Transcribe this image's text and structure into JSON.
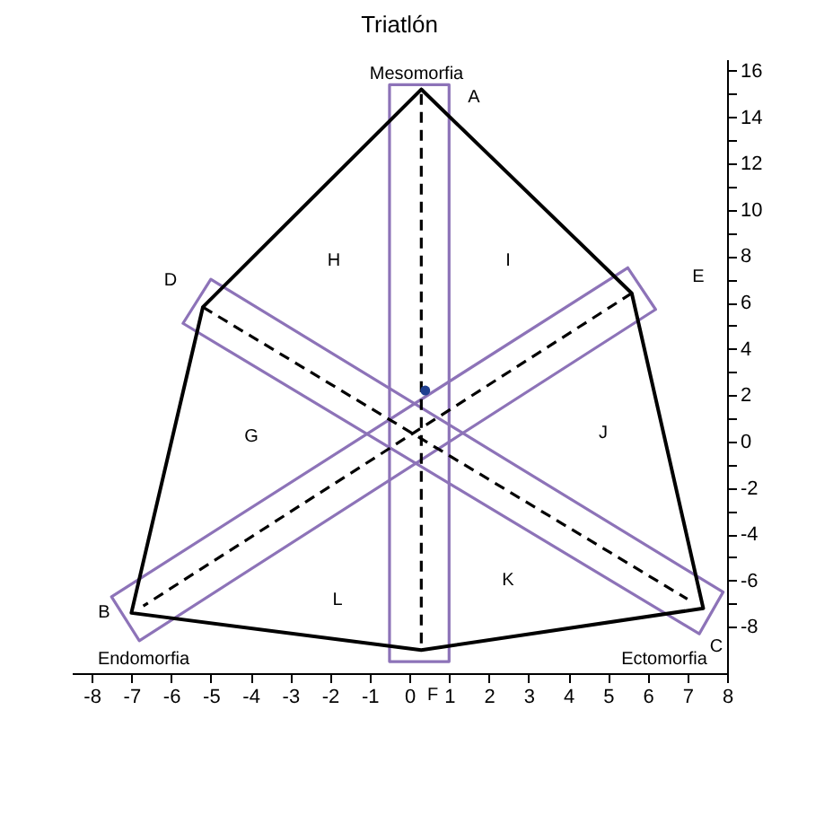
{
  "chart_data": {
    "type": "line",
    "title": "Triatlón",
    "xlim": [
      -8.5,
      8
    ],
    "ylim": [
      -10,
      16.5
    ],
    "xticks": [
      -8,
      -7,
      -6,
      -5,
      -4,
      -3,
      -2,
      -1,
      0,
      1,
      2,
      3,
      4,
      5,
      6,
      7,
      8
    ],
    "yticks": [
      -8,
      {
        "value": -7,
        "label": null
      },
      -6,
      {
        "value": -5,
        "label": null
      },
      -4,
      {
        "value": -3,
        "label": null
      },
      -2,
      {
        "value": -1,
        "label": null
      },
      0,
      {
        "value": 1,
        "label": null
      },
      2,
      {
        "value": 3,
        "label": null
      },
      4,
      {
        "value": 5,
        "label": null
      },
      6,
      {
        "value": 7,
        "label": null
      },
      8,
      {
        "value": 9,
        "label": null
      },
      10,
      {
        "value": 11,
        "label": null
      },
      12,
      {
        "value": 13,
        "label": null
      },
      14,
      {
        "value": 15,
        "label": null
      },
      16
    ],
    "grid": false,
    "series": [
      {
        "color": "#8d73b8",
        "x": [
          -0.5,
          1.0,
          1.0,
          -0.5,
          -0.5,
          1.0
        ],
        "values": [
          15.4,
          15.4,
          -9.5,
          -9.5,
          15.4,
          15.4
        ]
      },
      {
        "color": "#8d73b8",
        "x": [
          7.9,
          7.3,
          -5.7,
          -5.0,
          7.9,
          7.3
        ],
        "values": [
          -6.5,
          -8.3,
          5.1,
          7.0,
          -6.5,
          -8.3
        ]
      },
      {
        "color": "#8d73b8",
        "x": [
          -7.5,
          -6.8,
          6.2,
          5.5,
          -7.5,
          -6.8
        ],
        "values": [
          -6.7,
          -8.6,
          5.7,
          7.5,
          -6.7,
          -8.6
        ]
      },
      {
        "color": "#000000",
        "line_style": "dashed",
        "x": [
          0.3,
          0.3
        ],
        "values": [
          15.0,
          -9.0
        ]
      },
      {
        "color": "#000000",
        "line_style": "dashed",
        "x": [
          -5.2,
          7.0
        ],
        "values": [
          5.8,
          -6.8
        ]
      },
      {
        "color": "#000000",
        "line_style": "dashed",
        "x": [
          5.6,
          -6.7
        ],
        "values": [
          6.4,
          -7.1
        ]
      },
      {
        "color": "#000000",
        "x": [
          -5.2,
          0.3,
          5.6,
          7.4,
          0.3,
          -7.0,
          -5.2,
          0.3
        ],
        "values": [
          5.8,
          15.2,
          6.4,
          -7.2,
          -9.0,
          -7.4,
          5.8,
          15.2
        ]
      },
      {
        "type": "scatter",
        "color": "#1f3f8f",
        "marker": "circle",
        "x": [
          0.4
        ],
        "values": [
          2.2
        ]
      }
    ],
    "annotations": [
      "Mesomorfia",
      "A",
      "D",
      "H",
      "I",
      "E",
      "G",
      "J",
      "L",
      "K",
      "B",
      "C",
      "Endomorfia",
      "Ectomorfia",
      "F"
    ]
  }
}
